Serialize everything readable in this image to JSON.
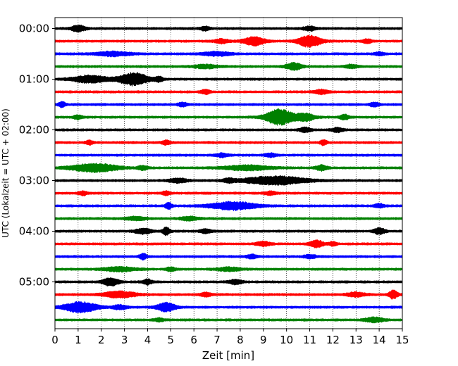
{
  "chart_data": {
    "type": "line",
    "xlabel": "Zeit  [min]",
    "ylabel": "UTC (Lokalzeit = UTC + 02:00)",
    "xlim": [
      0,
      15
    ],
    "x_ticks": [
      "0",
      "1",
      "2",
      "3",
      "4",
      "5",
      "6",
      "7",
      "8",
      "9",
      "10",
      "11",
      "12",
      "13",
      "14",
      "15"
    ],
    "y_ticks": [
      "00:00",
      "01:00",
      "02:00",
      "03:00",
      "04:00",
      "05:00"
    ],
    "grid": "vertical dotted lines at each minute",
    "row_interval_minutes": 15,
    "series_colors": [
      "#000000",
      "#ff0000",
      "#0000ff",
      "#008000"
    ],
    "rows": [
      {
        "start": "00:00",
        "color": "#000000",
        "bursts": [
          [
            1.0,
            0.6,
            1.2
          ],
          [
            6.5,
            0.4,
            0.8
          ],
          [
            11.0,
            0.5,
            0.8
          ]
        ]
      },
      {
        "start": "00:15",
        "color": "#ff0000",
        "bursts": [
          [
            8.6,
            0.9,
            1.7
          ],
          [
            11.0,
            1.0,
            2.2
          ],
          [
            7.2,
            0.6,
            0.8
          ],
          [
            13.5,
            0.4,
            0.7
          ]
        ]
      },
      {
        "start": "00:30",
        "color": "#0000ff",
        "bursts": [
          [
            2.5,
            1.5,
            0.8
          ],
          [
            7.0,
            1.2,
            0.7
          ],
          [
            14.0,
            0.4,
            0.6
          ]
        ]
      },
      {
        "start": "00:45",
        "color": "#008000",
        "bursts": [
          [
            6.5,
            1.0,
            0.7
          ],
          [
            10.3,
            0.7,
            1.3
          ],
          [
            12.8,
            0.5,
            0.7
          ]
        ]
      },
      {
        "start": "01:00",
        "color": "#000000",
        "bursts": [
          [
            1.5,
            1.5,
            1.4
          ],
          [
            3.4,
            1.3,
            2.4
          ],
          [
            4.5,
            0.3,
            1.0
          ]
        ]
      },
      {
        "start": "01:15",
        "color": "#ff0000",
        "bursts": [
          [
            6.5,
            0.4,
            0.8
          ],
          [
            11.5,
            0.6,
            0.8
          ]
        ]
      },
      {
        "start": "01:30",
        "color": "#0000ff",
        "bursts": [
          [
            0.3,
            0.3,
            1.0
          ],
          [
            5.5,
            0.4,
            0.7
          ],
          [
            13.8,
            0.4,
            0.8
          ]
        ]
      },
      {
        "start": "01:45",
        "color": "#008000",
        "bursts": [
          [
            9.7,
            1.2,
            3.0
          ],
          [
            10.8,
            0.8,
            1.4
          ],
          [
            12.5,
            0.4,
            0.9
          ],
          [
            1.0,
            0.4,
            0.8
          ]
        ]
      },
      {
        "start": "02:00",
        "color": "#000000",
        "bursts": [
          [
            10.8,
            0.5,
            0.9
          ],
          [
            12.2,
            0.5,
            0.8
          ]
        ]
      },
      {
        "start": "02:15",
        "color": "#ff0000",
        "bursts": [
          [
            1.5,
            0.3,
            0.8
          ],
          [
            4.8,
            0.4,
            0.7
          ],
          [
            11.6,
            0.3,
            0.9
          ]
        ]
      },
      {
        "start": "02:30",
        "color": "#0000ff",
        "bursts": [
          [
            7.2,
            0.5,
            0.7
          ],
          [
            9.3,
            0.5,
            0.7
          ]
        ]
      },
      {
        "start": "02:45",
        "color": "#008000",
        "bursts": [
          [
            1.7,
            2.0,
            1.6
          ],
          [
            3.8,
            0.4,
            0.8
          ],
          [
            8.3,
            2.0,
            0.9
          ],
          [
            11.5,
            0.5,
            1.0
          ]
        ]
      },
      {
        "start": "03:00",
        "color": "#000000",
        "bursts": [
          [
            9.5,
            2.7,
            1.6
          ],
          [
            5.3,
            0.8,
            0.8
          ],
          [
            7.5,
            0.5,
            0.7
          ]
        ]
      },
      {
        "start": "03:15",
        "color": "#ff0000",
        "bursts": [
          [
            1.2,
            0.4,
            0.7
          ],
          [
            4.8,
            0.3,
            0.8
          ],
          [
            9.3,
            0.5,
            0.6
          ]
        ]
      },
      {
        "start": "03:30",
        "color": "#0000ff",
        "bursts": [
          [
            4.9,
            0.3,
            1.2
          ],
          [
            7.7,
            2.0,
            1.5
          ],
          [
            14.0,
            0.4,
            0.7
          ]
        ]
      },
      {
        "start": "03:45",
        "color": "#008000",
        "bursts": [
          [
            3.5,
            0.8,
            0.7
          ],
          [
            5.8,
            0.8,
            0.7
          ]
        ]
      },
      {
        "start": "04:00",
        "color": "#000000",
        "bursts": [
          [
            3.8,
            0.7,
            1.0
          ],
          [
            4.8,
            0.3,
            1.6
          ],
          [
            14.0,
            0.5,
            1.1
          ],
          [
            6.5,
            0.5,
            0.7
          ]
        ]
      },
      {
        "start": "04:15",
        "color": "#ff0000",
        "bursts": [
          [
            11.3,
            0.6,
            1.3
          ],
          [
            9.0,
            0.6,
            0.8
          ],
          [
            12.0,
            0.3,
            0.8
          ]
        ]
      },
      {
        "start": "04:30",
        "color": "#0000ff",
        "bursts": [
          [
            3.8,
            0.3,
            1.2
          ],
          [
            8.5,
            0.5,
            0.7
          ],
          [
            11.0,
            0.5,
            0.7
          ]
        ]
      },
      {
        "start": "04:45",
        "color": "#008000",
        "bursts": [
          [
            2.8,
            1.4,
            0.8
          ],
          [
            5.0,
            0.4,
            0.8
          ],
          [
            7.5,
            1.0,
            0.7
          ]
        ]
      },
      {
        "start": "05:00",
        "color": "#000000",
        "bursts": [
          [
            2.4,
            0.7,
            1.5
          ],
          [
            4.0,
            0.4,
            1.0
          ],
          [
            7.8,
            0.6,
            0.8
          ]
        ]
      },
      {
        "start": "05:15",
        "color": "#ff0000",
        "bursts": [
          [
            2.8,
            1.4,
            1.2
          ],
          [
            14.6,
            0.4,
            1.6
          ],
          [
            13.0,
            0.8,
            0.8
          ],
          [
            6.5,
            0.5,
            0.7
          ]
        ]
      },
      {
        "start": "05:30",
        "color": "#0000ff",
        "bursts": [
          [
            1.1,
            1.4,
            2.0
          ],
          [
            4.8,
            0.8,
            1.7
          ],
          [
            2.8,
            0.6,
            0.8
          ]
        ]
      },
      {
        "start": "05:45",
        "color": "#008000",
        "bursts": [
          [
            13.8,
            0.8,
            0.9
          ],
          [
            4.5,
            0.4,
            0.6
          ]
        ]
      }
    ]
  }
}
